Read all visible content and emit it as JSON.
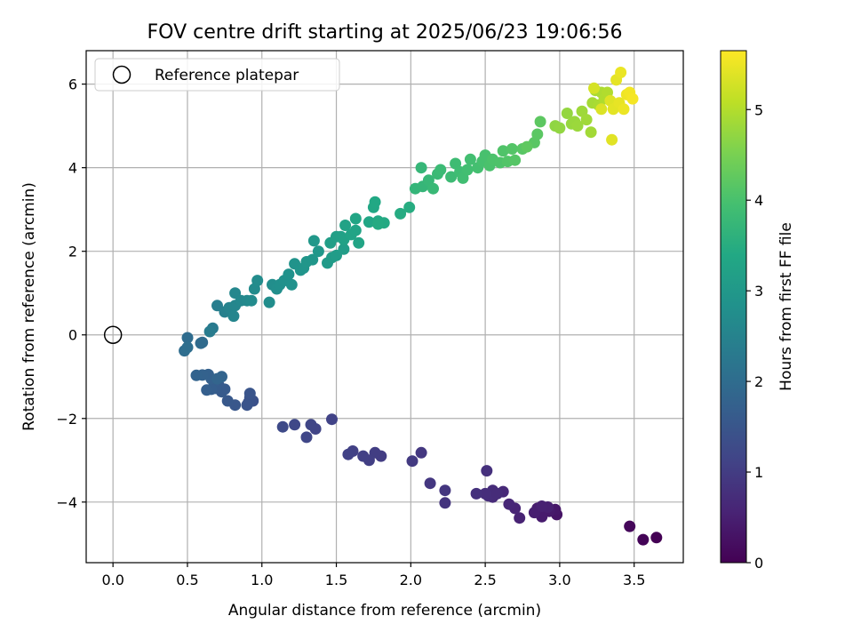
{
  "chart_data": {
    "type": "scatter",
    "title": "FOV centre drift starting at 2025/06/23 19:06:56",
    "xlabel": "Angular distance from reference (arcmin)",
    "ylabel": "Rotation from reference (arcmin)",
    "colorbar_label": "Hours from first FF file",
    "xlim": [
      -0.18,
      3.83
    ],
    "ylim": [
      -5.45,
      6.8
    ],
    "clim": [
      0,
      5.65
    ],
    "colormap": "viridis",
    "grid": true,
    "legend_placement": "upper-left",
    "xticks": [
      {
        "value": 0.0,
        "label": "0.0"
      },
      {
        "value": 0.5,
        "label": "0.5"
      },
      {
        "value": 1.0,
        "label": "1.0"
      },
      {
        "value": 1.5,
        "label": "1.5"
      },
      {
        "value": 2.0,
        "label": "2.0"
      },
      {
        "value": 2.5,
        "label": "2.5"
      },
      {
        "value": 3.0,
        "label": "3.0"
      },
      {
        "value": 3.5,
        "label": "3.5"
      }
    ],
    "yticks": [
      {
        "value": -4,
        "label": "−4"
      },
      {
        "value": -2,
        "label": "−2"
      },
      {
        "value": 0,
        "label": "0"
      },
      {
        "value": 2,
        "label": "2"
      },
      {
        "value": 4,
        "label": "4"
      },
      {
        "value": 6,
        "label": "6"
      }
    ],
    "cticks": [
      {
        "value": 0,
        "label": "0"
      },
      {
        "value": 1,
        "label": "1"
      },
      {
        "value": 2,
        "label": "2"
      },
      {
        "value": 3,
        "label": "3"
      },
      {
        "value": 4,
        "label": "4"
      },
      {
        "value": 5,
        "label": "5"
      }
    ],
    "reference": {
      "name": "Reference platepar",
      "x": 0.0,
      "y": 0.0
    },
    "points": [
      [
        3.65,
        -4.85,
        0.0
      ],
      [
        3.56,
        -4.9,
        0.05
      ],
      [
        3.47,
        -4.58,
        0.1
      ],
      [
        2.98,
        -4.3,
        0.3
      ],
      [
        2.97,
        -4.18,
        0.35
      ],
      [
        2.93,
        -4.22,
        0.4
      ],
      [
        2.88,
        -4.35,
        0.42
      ],
      [
        2.85,
        -4.15,
        0.45
      ],
      [
        2.83,
        -4.25,
        0.48
      ],
      [
        2.92,
        -4.12,
        0.5
      ],
      [
        2.88,
        -4.1,
        0.52
      ],
      [
        2.73,
        -4.38,
        0.55
      ],
      [
        2.7,
        -4.15,
        0.58
      ],
      [
        2.66,
        -4.05,
        0.62
      ],
      [
        2.62,
        -3.75,
        0.65
      ],
      [
        2.55,
        -3.88,
        0.68
      ],
      [
        2.55,
        -3.72,
        0.7
      ],
      [
        2.52,
        -3.85,
        0.72
      ],
      [
        2.5,
        -3.8,
        0.75
      ],
      [
        2.51,
        -3.25,
        0.78
      ],
      [
        2.44,
        -3.8,
        0.8
      ],
      [
        2.58,
        -3.8,
        0.7
      ],
      [
        2.23,
        -4.02,
        0.85
      ],
      [
        2.23,
        -3.72,
        0.88
      ],
      [
        2.13,
        -3.55,
        0.9
      ],
      [
        2.07,
        -2.82,
        0.92
      ],
      [
        2.01,
        -3.02,
        0.95
      ],
      [
        1.8,
        -2.9,
        1.0
      ],
      [
        1.76,
        -2.82,
        1.02
      ],
      [
        1.72,
        -3.0,
        1.04
      ],
      [
        1.68,
        -2.9,
        1.06
      ],
      [
        1.61,
        -2.78,
        1.08
      ],
      [
        1.58,
        -2.86,
        1.1
      ],
      [
        1.47,
        -2.02,
        1.12
      ],
      [
        1.36,
        -2.25,
        1.15
      ],
      [
        1.33,
        -2.15,
        1.17
      ],
      [
        1.3,
        -2.45,
        1.2
      ],
      [
        1.22,
        -2.15,
        1.22
      ],
      [
        1.14,
        -2.2,
        1.25
      ],
      [
        0.94,
        -1.58,
        1.4
      ],
      [
        0.92,
        -1.5,
        1.42
      ],
      [
        0.91,
        -1.62,
        1.44
      ],
      [
        0.9,
        -1.68,
        1.46
      ],
      [
        0.92,
        -1.4,
        1.48
      ],
      [
        0.82,
        -1.68,
        1.52
      ],
      [
        0.77,
        -1.58,
        1.55
      ],
      [
        0.75,
        -1.3,
        1.58
      ],
      [
        0.73,
        -1.36,
        1.6
      ],
      [
        0.71,
        -1.2,
        1.62
      ],
      [
        0.69,
        -1.28,
        1.64
      ],
      [
        0.68,
        -1.12,
        1.66
      ],
      [
        0.66,
        -1.3,
        1.68
      ],
      [
        0.63,
        -1.32,
        1.7
      ],
      [
        0.66,
        -1.05,
        1.72
      ],
      [
        0.64,
        -0.95,
        1.74
      ],
      [
        0.6,
        -0.96,
        1.76
      ],
      [
        0.56,
        -0.97,
        1.78
      ],
      [
        0.73,
        -1.0,
        1.8
      ],
      [
        0.7,
        -1.05,
        1.82
      ],
      [
        0.6,
        -0.18,
        1.95
      ],
      [
        0.59,
        -0.2,
        1.97
      ],
      [
        0.5,
        -0.07,
        2.0
      ],
      [
        0.48,
        -0.38,
        2.02
      ],
      [
        0.5,
        -0.3,
        2.04
      ],
      [
        0.67,
        0.16,
        2.3
      ],
      [
        0.65,
        0.08,
        2.35
      ],
      [
        0.7,
        0.7,
        2.4
      ],
      [
        0.75,
        0.55,
        2.45
      ],
      [
        0.78,
        0.65,
        2.5
      ],
      [
        0.81,
        0.45,
        2.55
      ],
      [
        0.82,
        0.7,
        2.58
      ],
      [
        0.82,
        1.0,
        2.6
      ],
      [
        0.86,
        0.82,
        2.62
      ],
      [
        0.9,
        0.82,
        2.65
      ],
      [
        0.93,
        0.82,
        2.68
      ],
      [
        0.95,
        1.1,
        2.7
      ],
      [
        0.97,
        1.3,
        2.72
      ],
      [
        1.05,
        0.78,
        2.74
      ],
      [
        1.07,
        1.2,
        2.76
      ],
      [
        1.1,
        1.1,
        2.78
      ],
      [
        1.12,
        1.2,
        2.8
      ],
      [
        1.15,
        1.3,
        2.82
      ],
      [
        1.18,
        1.45,
        2.84
      ],
      [
        1.2,
        1.2,
        2.86
      ],
      [
        1.22,
        1.7,
        2.88
      ],
      [
        1.26,
        1.55,
        2.9
      ],
      [
        1.28,
        1.6,
        2.92
      ],
      [
        1.3,
        1.75,
        2.94
      ],
      [
        1.34,
        1.8,
        2.96
      ],
      [
        1.38,
        2.0,
        2.98
      ],
      [
        1.35,
        2.25,
        3.0
      ],
      [
        1.44,
        1.72,
        3.05
      ],
      [
        1.47,
        1.85,
        3.08
      ],
      [
        1.5,
        1.9,
        3.1
      ],
      [
        1.55,
        2.05,
        3.12
      ],
      [
        1.46,
        2.2,
        3.15
      ],
      [
        1.5,
        2.35,
        3.18
      ],
      [
        1.53,
        2.35,
        3.2
      ],
      [
        1.55,
        2.28,
        3.22
      ],
      [
        1.56,
        2.62,
        3.24
      ],
      [
        1.6,
        2.4,
        3.26
      ],
      [
        1.63,
        2.5,
        3.28
      ],
      [
        1.65,
        2.2,
        3.3
      ],
      [
        1.63,
        2.78,
        3.32
      ],
      [
        1.72,
        2.7,
        3.34
      ],
      [
        1.75,
        3.05,
        3.36
      ],
      [
        1.76,
        3.18,
        3.38
      ],
      [
        1.78,
        2.72,
        3.4
      ],
      [
        1.82,
        2.68,
        3.42
      ],
      [
        1.78,
        2.65,
        3.44
      ],
      [
        1.93,
        2.9,
        3.46
      ],
      [
        1.99,
        3.05,
        3.48
      ],
      [
        2.03,
        3.5,
        3.7
      ],
      [
        2.08,
        3.55,
        3.72
      ],
      [
        2.07,
        4.0,
        3.74
      ],
      [
        2.12,
        3.7,
        3.76
      ],
      [
        2.15,
        3.5,
        3.78
      ],
      [
        2.18,
        3.85,
        3.8
      ],
      [
        2.2,
        3.95,
        3.82
      ],
      [
        2.27,
        3.78,
        3.84
      ],
      [
        2.3,
        4.1,
        3.86
      ],
      [
        2.33,
        3.9,
        3.88
      ],
      [
        2.35,
        3.75,
        3.9
      ],
      [
        2.38,
        3.95,
        3.92
      ],
      [
        2.4,
        4.2,
        3.94
      ],
      [
        2.45,
        4.0,
        3.96
      ],
      [
        2.48,
        4.15,
        3.98
      ],
      [
        2.5,
        4.3,
        4.0
      ],
      [
        2.53,
        4.05,
        4.02
      ],
      [
        2.55,
        4.2,
        4.04
      ],
      [
        2.6,
        4.12,
        4.06
      ],
      [
        2.62,
        4.4,
        4.08
      ],
      [
        2.65,
        4.15,
        4.1
      ],
      [
        2.68,
        4.45,
        4.12
      ],
      [
        2.7,
        4.18,
        4.14
      ],
      [
        2.75,
        4.45,
        4.16
      ],
      [
        2.83,
        4.6,
        4.18
      ],
      [
        2.85,
        4.8,
        4.2
      ],
      [
        2.87,
        5.1,
        4.22
      ],
      [
        2.78,
        4.5,
        4.24
      ],
      [
        2.97,
        5.0,
        4.7
      ],
      [
        3.0,
        4.95,
        4.72
      ],
      [
        3.05,
        5.3,
        4.74
      ],
      [
        3.08,
        5.05,
        4.76
      ],
      [
        3.1,
        5.1,
        4.78
      ],
      [
        3.12,
        5.0,
        4.8
      ],
      [
        3.15,
        5.35,
        4.82
      ],
      [
        3.18,
        5.15,
        4.84
      ],
      [
        3.21,
        4.85,
        4.86
      ],
      [
        3.22,
        5.55,
        4.88
      ],
      [
        3.24,
        5.85,
        4.9
      ],
      [
        3.26,
        5.5,
        4.92
      ],
      [
        3.28,
        5.8,
        4.94
      ],
      [
        3.3,
        5.65,
        4.96
      ],
      [
        3.32,
        5.8,
        4.98
      ],
      [
        3.23,
        5.9,
        5.3
      ],
      [
        3.28,
        5.4,
        5.35
      ],
      [
        3.34,
        5.6,
        5.38
      ],
      [
        3.35,
        4.67,
        5.4
      ],
      [
        3.36,
        5.4,
        5.42
      ],
      [
        3.38,
        6.1,
        5.44
      ],
      [
        3.4,
        5.55,
        5.46
      ],
      [
        3.41,
        6.28,
        5.48
      ],
      [
        3.43,
        5.4,
        5.5
      ],
      [
        3.45,
        5.75,
        5.52
      ],
      [
        3.47,
        5.8,
        5.55
      ],
      [
        3.49,
        5.65,
        5.58
      ]
    ]
  }
}
